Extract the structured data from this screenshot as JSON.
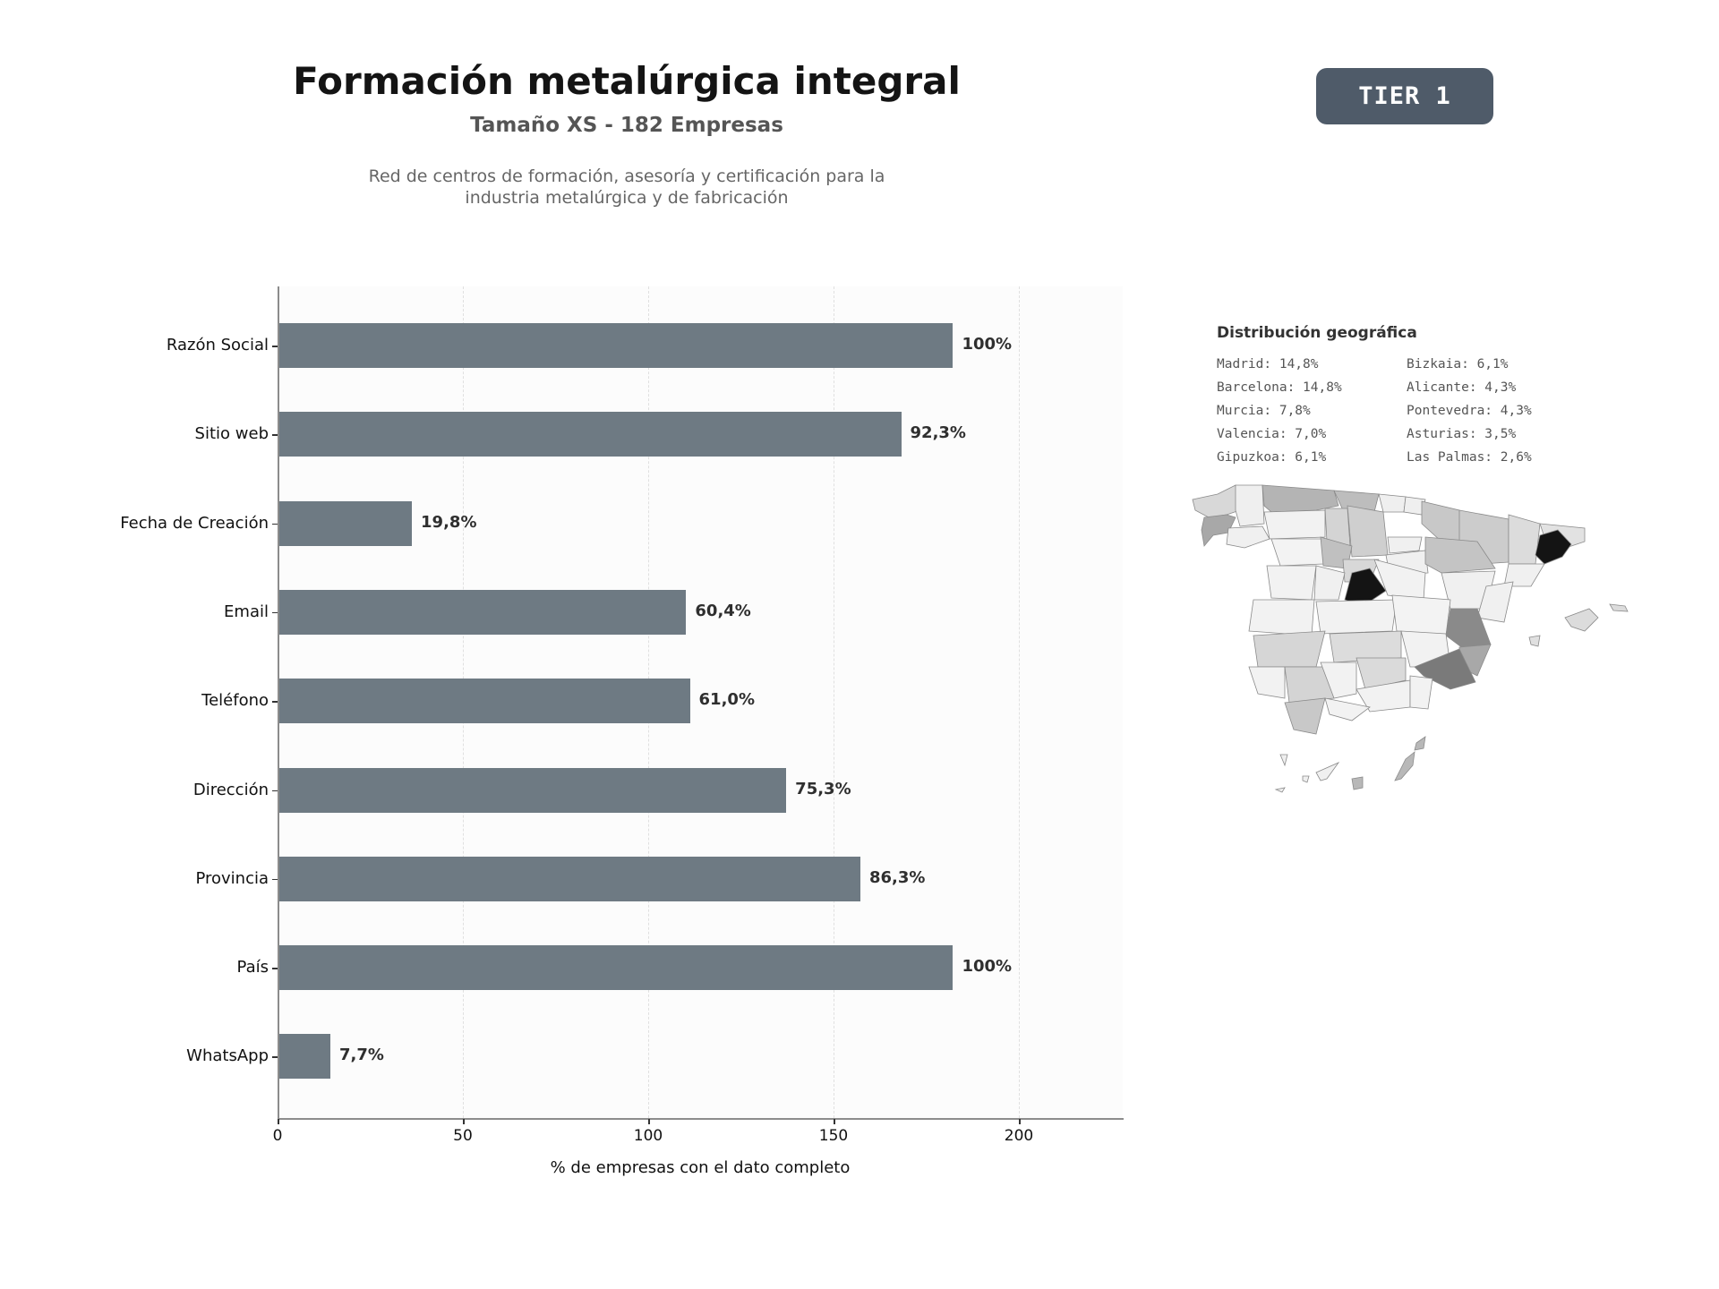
{
  "header": {
    "title": "Formación metalúrgica integral",
    "subtitle": "Tamaño XS - 182 Empresas",
    "description_line1": "Red de centros de formación, asesoría y certificación para la",
    "description_line2": "industria metalúrgica y de fabricación",
    "tier_badge": "TIER 1"
  },
  "colors": {
    "bar": "#6e7a83",
    "badge": "#4f5b69",
    "plot_bg": "#fcfcfc",
    "map_highlight": "#141414"
  },
  "chart_data": [
    {
      "type": "bar",
      "orientation": "horizontal",
      "title": "",
      "xlabel": "% de empresas con el dato completo",
      "ylabel": "",
      "xlim": [
        0,
        228
      ],
      "xticks": [
        0,
        50,
        100,
        150,
        200
      ],
      "grid": "vertical dashed",
      "total": 182,
      "categories": [
        "Razón Social",
        "Sitio web",
        "Fecha de Creación",
        "Email",
        "Teléfono",
        "Dirección",
        "Provincia",
        "País",
        "WhatsApp"
      ],
      "values": [
        182,
        168,
        36,
        110,
        111,
        137,
        157,
        182,
        14
      ],
      "labels": [
        "100%",
        "92,3%",
        "19,8%",
        "60,4%",
        "61,0%",
        "75,3%",
        "86,3%",
        "100%",
        "7,7%"
      ]
    },
    {
      "type": "choropleth",
      "title": "Distribución geográfica",
      "region": "Spain provinces",
      "legend": [
        {
          "name": "Madrid",
          "value": "14,8%"
        },
        {
          "name": "Barcelona",
          "value": "14,8%"
        },
        {
          "name": "Murcia",
          "value": "7,8%"
        },
        {
          "name": "Valencia",
          "value": "7,0%"
        },
        {
          "name": "Gipuzkoa",
          "value": "6,1%"
        },
        {
          "name": "Bizkaia",
          "value": "6,1%"
        },
        {
          "name": "Alicante",
          "value": "4,3%"
        },
        {
          "name": "Pontevedra",
          "value": "4,3%"
        },
        {
          "name": "Asturias",
          "value": "3,5%"
        },
        {
          "name": "Las Palmas",
          "value": "2,6%"
        }
      ]
    }
  ],
  "geo": {
    "title": "Distribución geográfica",
    "col1": [
      "Madrid: 14,8%",
      "Barcelona: 14,8%",
      "Murcia: 7,8%",
      "Valencia: 7,0%",
      "Gipuzkoa: 6,1%"
    ],
    "col2": [
      "Bizkaia: 6,1%",
      "Alicante: 4,3%",
      "Pontevedra: 4,3%",
      "Asturias: 3,5%",
      "Las Palmas: 2,6%"
    ]
  }
}
